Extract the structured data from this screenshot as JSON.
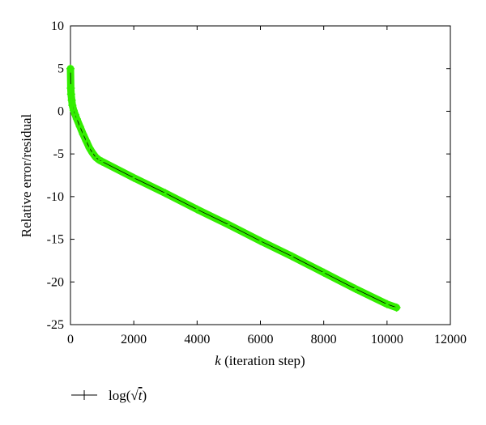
{
  "chart_data": {
    "type": "line",
    "title": "",
    "xlabel_var": "k",
    "xlabel_rest": " (iteration step)",
    "ylabel": "Relative error/residual",
    "xlim": [
      0,
      12000
    ],
    "ylim": [
      -25,
      10
    ],
    "xticks": [
      0,
      2000,
      4000,
      6000,
      8000,
      10000,
      12000
    ],
    "yticks": [
      10,
      5,
      0,
      -5,
      -10,
      -15,
      -20,
      -25
    ],
    "grid": false,
    "legend_position": "bottom-left",
    "series": [
      {
        "name_prefix": "log(",
        "name_radicand": "t",
        "name_suffix": ")",
        "line_color": "#000000",
        "marker_color": "#33ee00",
        "marker": "+",
        "x": [
          0,
          10,
          20,
          40,
          60,
          100,
          150,
          200,
          300,
          400,
          500,
          600,
          700,
          800,
          900,
          1000,
          2000,
          3000,
          4000,
          5000,
          6000,
          7000,
          8000,
          9000,
          10000,
          10300
        ],
        "y": [
          5.0,
          2.7,
          2.0,
          1.3,
          0.7,
          0.1,
          -0.4,
          -0.9,
          -1.8,
          -2.7,
          -3.5,
          -4.3,
          -4.9,
          -5.4,
          -5.7,
          -5.9,
          -7.8,
          -9.6,
          -11.5,
          -13.3,
          -15.2,
          -17.0,
          -18.9,
          -20.8,
          -22.6,
          -23.0
        ]
      }
    ]
  }
}
